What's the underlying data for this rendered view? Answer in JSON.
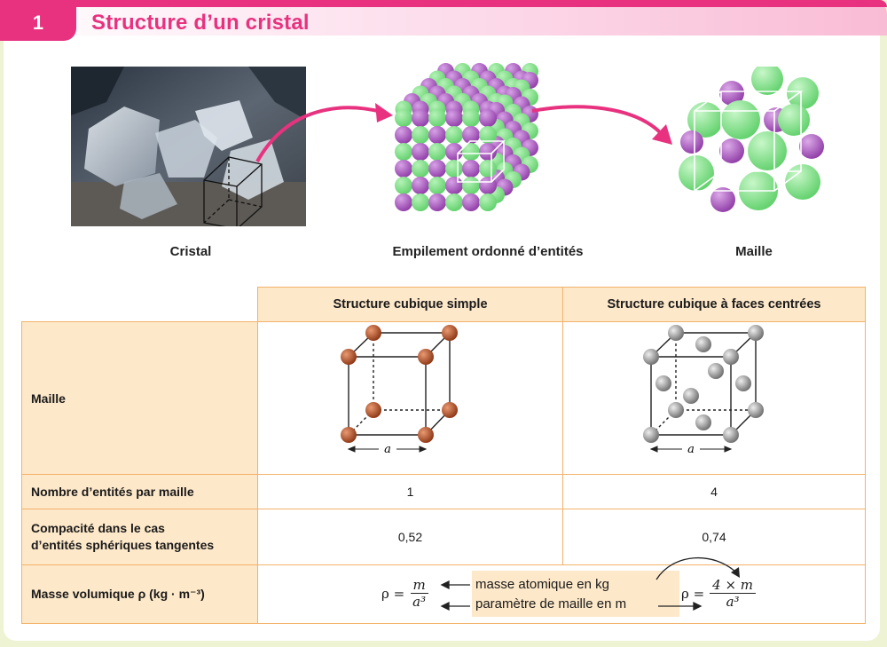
{
  "section": {
    "number": "1",
    "title": "Structure d’un cristal"
  },
  "figure": {
    "captions": {
      "crystal": "Cristal",
      "stack": "Empilement ordonné d’entités",
      "cell": "Maille"
    }
  },
  "table": {
    "columns": [
      "Structure cubique simple",
      "Structure cubique à faces centrées"
    ],
    "rows": {
      "maille": {
        "label": "Maille",
        "dim_label": "a"
      },
      "entities": {
        "label": "Nombre d’entités par maille",
        "values": [
          "1",
          "4"
        ]
      },
      "compacity": {
        "label_line1": "Compacité dans le cas",
        "label_line2": "d’entités sphériques tangentes",
        "values": [
          "0,52",
          "0,74"
        ]
      },
      "density": {
        "label": "Masse volumique ρ (kg · m⁻³)",
        "rho": "ρ =",
        "simple_num": "m",
        "simple_den": "a³",
        "fcc_num": "4 × m",
        "fcc_den": "a³",
        "note_mass": "masse atomique en kg",
        "note_param": "paramètre de maille en m"
      }
    }
  },
  "colors": {
    "accent": "#e8327f",
    "table_border": "#f3b26a",
    "table_fill": "#fde8c9",
    "green_sphere": "#5fd06a",
    "purple_sphere": "#8e3aa6",
    "copper_sphere": "#b5512a",
    "grey_sphere": "#9a9a9a"
  }
}
